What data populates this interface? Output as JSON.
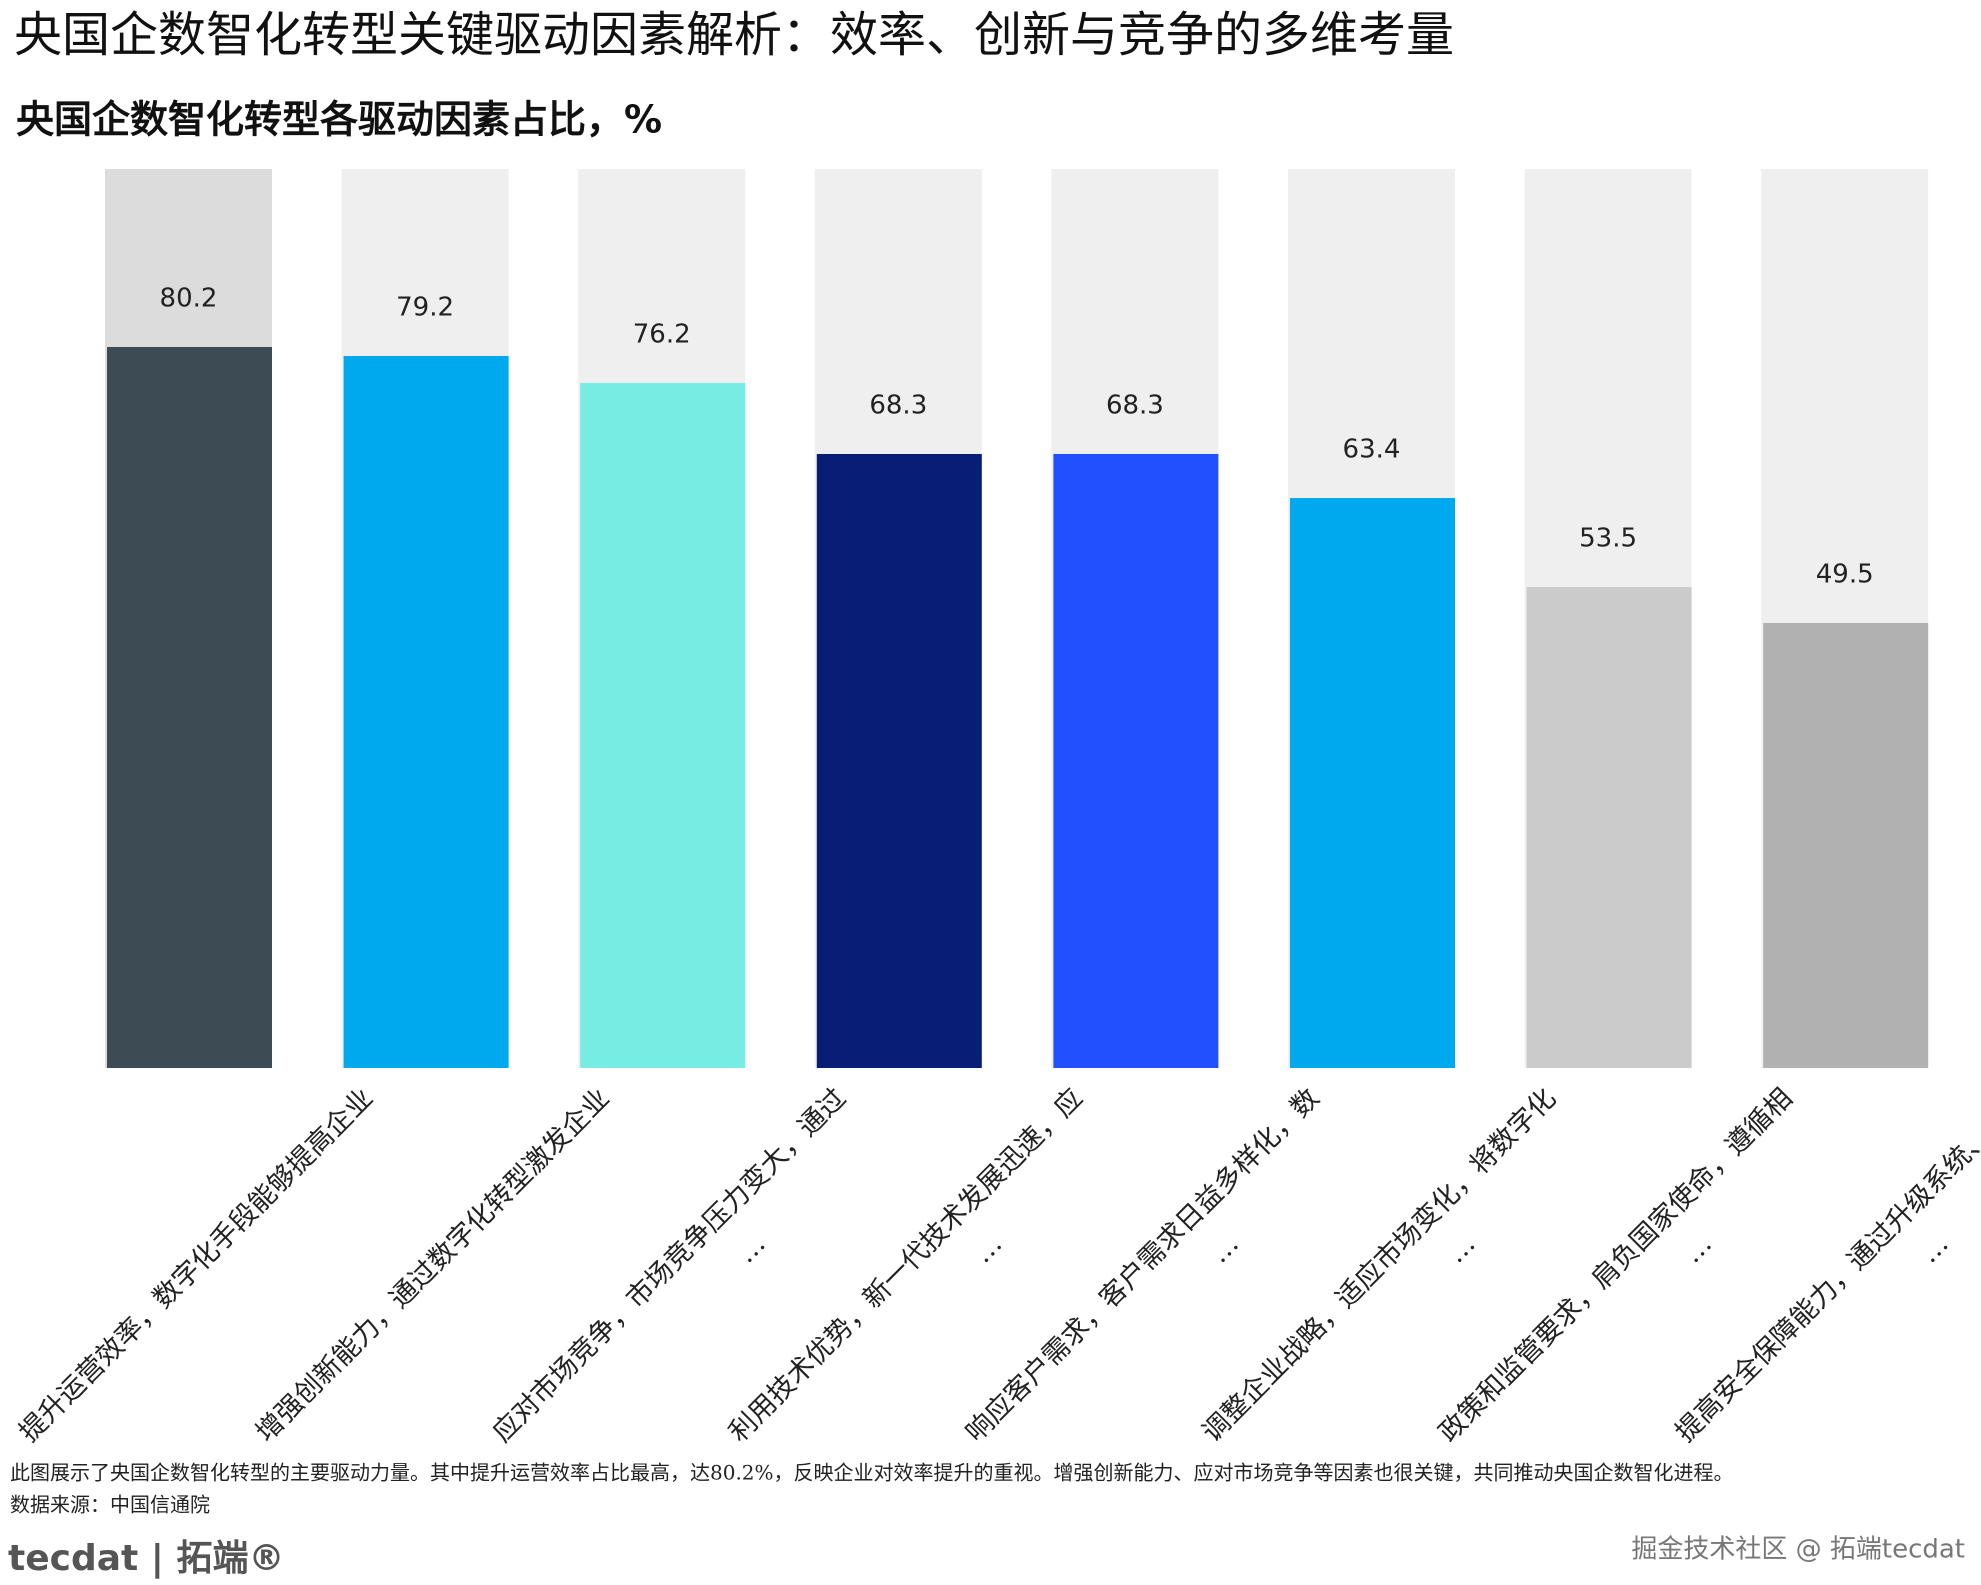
{
  "chart_data": {
    "type": "bar",
    "title": "央国企数智化转型关键驱动因素解析：效率、创新与竞争的多维考量",
    "subtitle": "央国企数智化转型各驱动因素占比，%",
    "categories": [
      "提升运营效率，数字化手段能够提高企业",
      "增强创新能力，通过数字化转型激发企业",
      "应对市场竞争，市场竞争压力变大，通过\n…",
      "利用技术优势，新一代技术发展迅速，应\n…",
      "响应客户需求，客户需求日益多样化，数\n…",
      "调整企业战略，适应市场变化，将数字化\n…",
      "政策和监管要求，肩负国家使命，遵循相\n…",
      "提高安全保障能力，通过升级系统、信创\n…"
    ],
    "values": [
      80.2,
      79.2,
      76.2,
      68.3,
      68.3,
      63.4,
      53.5,
      49.5
    ],
    "colors": [
      "#3d4b55",
      "#00a9ee",
      "#76ece3",
      "#081e76",
      "#2250fe",
      "#00a9ee",
      "#cbcbcb",
      "#b1b1b1"
    ],
    "track_colors": [
      "#dcdcdc",
      "#efefef",
      "#efefef",
      "#efefef",
      "#efefef",
      "#efefef",
      "#efefef",
      "#efefef"
    ],
    "ylim": [
      0,
      100
    ],
    "note": "此图展示了央国企数智化转型的主要驱动力量。其中提升运营效率占比最高，达80.2%，反映企业对效率提升的重视。增强创新能力、应对市场竞争等因素也很关键，共同推动央国企数智化进程。",
    "source": "数据来源：中国信通院",
    "logo": "tecdat | 拓端®",
    "watermark": "掘金技术社区 @ 拓端tecdat"
  }
}
